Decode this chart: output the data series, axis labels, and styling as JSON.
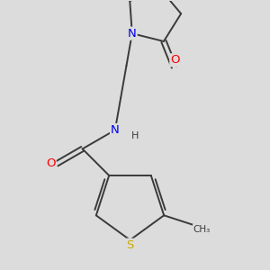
{
  "background_color": "#dcdcdc",
  "bond_color": "#3a3a3a",
  "atom_colors": {
    "O": "#ff0000",
    "N": "#0000ee",
    "S": "#ccaa00",
    "C": "#3a3a3a",
    "H": "#3a3a3a"
  },
  "figsize": [
    3.0,
    3.0
  ],
  "dpi": 100
}
